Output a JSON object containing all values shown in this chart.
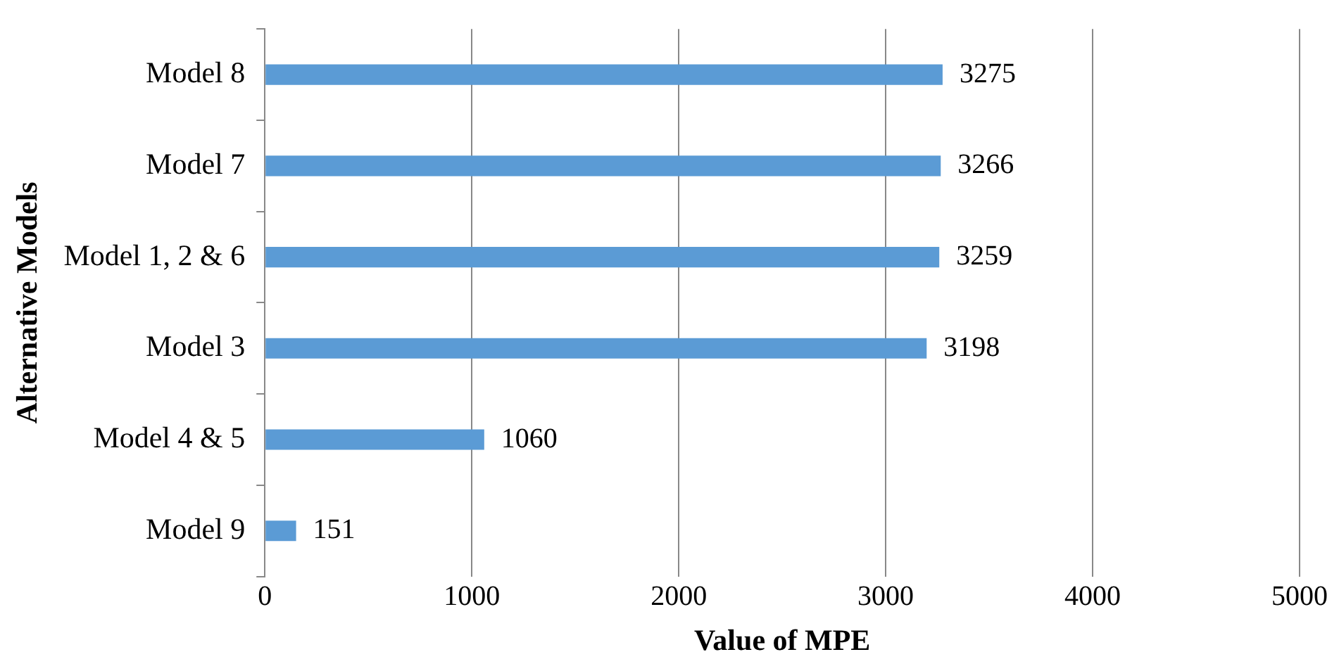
{
  "chart_data": {
    "type": "bar",
    "orientation": "horizontal",
    "xlabel": "Value of MPE",
    "ylabel": "Alternative Models",
    "categories": [
      "Model 8",
      "Model 7",
      "Model 1, 2 & 6",
      "Model 3",
      "Model 4 & 5",
      "Model 9"
    ],
    "values": [
      3275,
      3266,
      3259,
      3198,
      1060,
      151
    ],
    "color": "#5b9bd5",
    "xlim": [
      0,
      5000
    ],
    "xticks": [
      0,
      1000,
      2000,
      3000,
      4000,
      5000
    ],
    "grid": "x",
    "legend": false,
    "data_labels": true
  }
}
